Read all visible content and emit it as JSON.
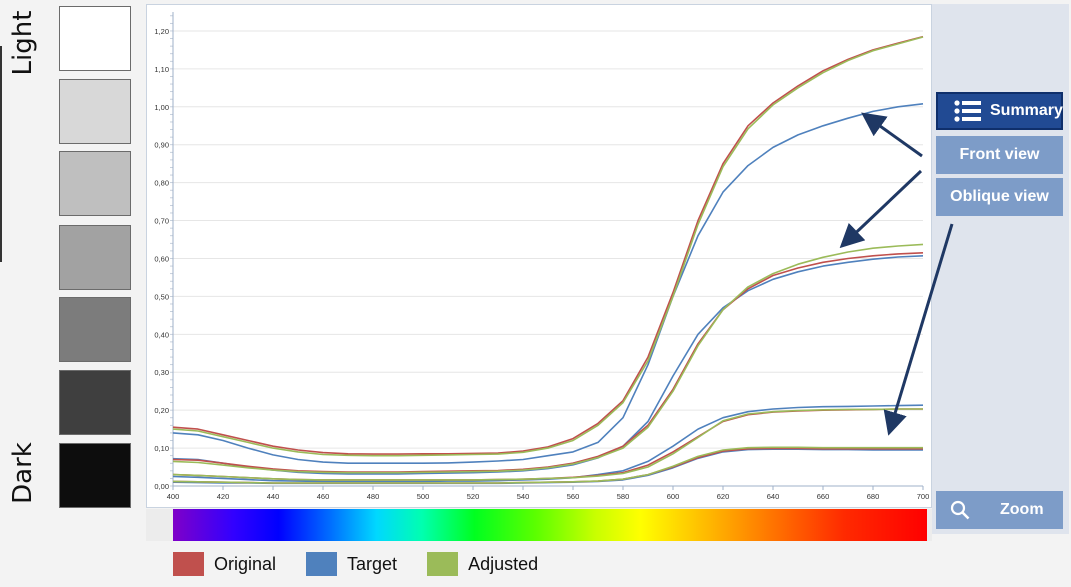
{
  "side_labels": {
    "top": "Light",
    "bottom": "Dark"
  },
  "swatches": [
    {
      "name": "swatch-1",
      "color": "#ffffff"
    },
    {
      "name": "swatch-2",
      "color": "#d8d8d8"
    },
    {
      "name": "swatch-3",
      "color": "#bfbfbf"
    },
    {
      "name": "swatch-4",
      "color": "#a2a2a2"
    },
    {
      "name": "swatch-5",
      "color": "#7c7c7c"
    },
    {
      "name": "swatch-6",
      "color": "#3f3f3f"
    },
    {
      "name": "swatch-7",
      "color": "#0d0d0d"
    }
  ],
  "buttons": {
    "summary": "Summary",
    "front_view": "Front view",
    "oblique_view": "Oblique view",
    "zoom": "Zoom"
  },
  "icons": {
    "summary": "list-icon",
    "zoom": "search-icon"
  },
  "colors": {
    "original": "#c0504d",
    "target": "#4f81bd",
    "adjusted": "#9bbb59",
    "active_button": "#214a93",
    "button": "#7d9cc8",
    "arrow": "#1f3864"
  },
  "chart_data": {
    "type": "line",
    "x": [
      400,
      410,
      420,
      430,
      440,
      450,
      460,
      470,
      480,
      490,
      500,
      510,
      520,
      530,
      540,
      550,
      560,
      570,
      580,
      590,
      600,
      610,
      620,
      630,
      640,
      650,
      660,
      670,
      680,
      690,
      700
    ],
    "xlim": [
      400,
      700
    ],
    "ylim": [
      0,
      1.25
    ],
    "xticks": [
      "400",
      "420",
      "440",
      "460",
      "480",
      "500",
      "520",
      "540",
      "560",
      "580",
      "600",
      "620",
      "640",
      "660",
      "680",
      "700"
    ],
    "yticks": [
      "0,00",
      "0,10",
      "0,20",
      "0,30",
      "0,40",
      "0,50",
      "0,60",
      "0,70",
      "0,80",
      "0,90",
      "1,00",
      "1,10",
      "1,20"
    ],
    "legend": [
      "Original",
      "Target",
      "Adjusted"
    ],
    "legend_position": "bottom",
    "grid": true,
    "groups": [
      {
        "original": [
          0.155,
          0.15,
          0.135,
          0.12,
          0.105,
          0.095,
          0.088,
          0.085,
          0.084,
          0.084,
          0.085,
          0.085,
          0.086,
          0.087,
          0.092,
          0.103,
          0.125,
          0.165,
          0.225,
          0.34,
          0.51,
          0.7,
          0.85,
          0.95,
          1.01,
          1.055,
          1.095,
          1.125,
          1.15,
          1.168,
          1.185
        ],
        "target": [
          0.14,
          0.135,
          0.12,
          0.1,
          0.082,
          0.07,
          0.063,
          0.06,
          0.06,
          0.06,
          0.06,
          0.061,
          0.063,
          0.066,
          0.07,
          0.08,
          0.09,
          0.115,
          0.18,
          0.32,
          0.5,
          0.66,
          0.775,
          0.845,
          0.893,
          0.926,
          0.95,
          0.97,
          0.988,
          1.0,
          1.008
        ],
        "adjusted": [
          0.15,
          0.145,
          0.13,
          0.115,
          0.1,
          0.09,
          0.083,
          0.081,
          0.08,
          0.08,
          0.081,
          0.082,
          0.083,
          0.084,
          0.089,
          0.1,
          0.12,
          0.16,
          0.22,
          0.33,
          0.5,
          0.69,
          0.842,
          0.942,
          1.005,
          1.05,
          1.09,
          1.122,
          1.148,
          1.166,
          1.184
        ]
      },
      {
        "original": [
          0.07,
          0.068,
          0.06,
          0.052,
          0.045,
          0.04,
          0.038,
          0.037,
          0.037,
          0.037,
          0.038,
          0.039,
          0.04,
          0.041,
          0.044,
          0.05,
          0.06,
          0.078,
          0.105,
          0.16,
          0.255,
          0.375,
          0.465,
          0.52,
          0.555,
          0.575,
          0.59,
          0.6,
          0.607,
          0.612,
          0.615
        ],
        "target": [
          0.072,
          0.07,
          0.06,
          0.05,
          0.042,
          0.036,
          0.033,
          0.032,
          0.032,
          0.032,
          0.033,
          0.034,
          0.035,
          0.037,
          0.04,
          0.046,
          0.056,
          0.074,
          0.105,
          0.17,
          0.29,
          0.4,
          0.47,
          0.515,
          0.545,
          0.565,
          0.58,
          0.59,
          0.598,
          0.604,
          0.607
        ],
        "adjusted": [
          0.065,
          0.062,
          0.055,
          0.048,
          0.042,
          0.038,
          0.036,
          0.035,
          0.035,
          0.035,
          0.036,
          0.037,
          0.038,
          0.039,
          0.042,
          0.048,
          0.058,
          0.075,
          0.1,
          0.155,
          0.25,
          0.37,
          0.465,
          0.525,
          0.56,
          0.585,
          0.603,
          0.617,
          0.627,
          0.633,
          0.637
        ]
      },
      {
        "original": [
          0.03,
          0.028,
          0.025,
          0.022,
          0.019,
          0.017,
          0.016,
          0.016,
          0.016,
          0.016,
          0.016,
          0.016,
          0.016,
          0.017,
          0.018,
          0.02,
          0.023,
          0.028,
          0.035,
          0.055,
          0.09,
          0.13,
          0.17,
          0.188,
          0.195,
          0.198,
          0.2,
          0.201,
          0.202,
          0.203,
          0.203
        ],
        "target": [
          0.025,
          0.023,
          0.02,
          0.017,
          0.014,
          0.013,
          0.012,
          0.012,
          0.012,
          0.012,
          0.012,
          0.013,
          0.013,
          0.014,
          0.016,
          0.018,
          0.022,
          0.03,
          0.04,
          0.065,
          0.105,
          0.15,
          0.18,
          0.196,
          0.203,
          0.207,
          0.209,
          0.21,
          0.211,
          0.212,
          0.213
        ],
        "adjusted": [
          0.03,
          0.028,
          0.025,
          0.022,
          0.019,
          0.017,
          0.016,
          0.016,
          0.016,
          0.016,
          0.016,
          0.016,
          0.016,
          0.017,
          0.018,
          0.02,
          0.022,
          0.026,
          0.033,
          0.05,
          0.085,
          0.128,
          0.172,
          0.19,
          0.196,
          0.199,
          0.201,
          0.202,
          0.202,
          0.203,
          0.203
        ]
      },
      {
        "original": [
          0.012,
          0.011,
          0.01,
          0.009,
          0.008,
          0.008,
          0.008,
          0.008,
          0.008,
          0.008,
          0.008,
          0.008,
          0.008,
          0.008,
          0.009,
          0.01,
          0.011,
          0.013,
          0.018,
          0.03,
          0.05,
          0.075,
          0.092,
          0.098,
          0.099,
          0.099,
          0.098,
          0.098,
          0.098,
          0.098,
          0.098
        ],
        "target": [
          0.01,
          0.009,
          0.008,
          0.008,
          0.007,
          0.007,
          0.007,
          0.007,
          0.007,
          0.007,
          0.007,
          0.007,
          0.007,
          0.007,
          0.008,
          0.009,
          0.01,
          0.012,
          0.016,
          0.028,
          0.048,
          0.073,
          0.09,
          0.096,
          0.097,
          0.097,
          0.096,
          0.096,
          0.095,
          0.095,
          0.095
        ],
        "adjusted": [
          0.012,
          0.011,
          0.01,
          0.009,
          0.008,
          0.008,
          0.008,
          0.008,
          0.008,
          0.008,
          0.008,
          0.008,
          0.008,
          0.008,
          0.009,
          0.01,
          0.011,
          0.013,
          0.018,
          0.03,
          0.052,
          0.078,
          0.095,
          0.101,
          0.102,
          0.102,
          0.101,
          0.101,
          0.101,
          0.101,
          0.101
        ]
      }
    ]
  }
}
